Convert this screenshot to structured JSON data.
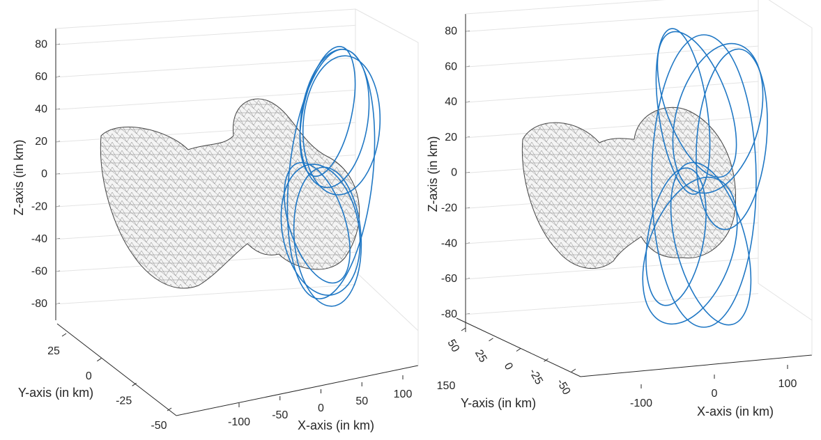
{
  "chart_data": [
    {
      "type": "line3d",
      "zlabel": "Z-axis (in km)",
      "ylabel": "Y-axis (in km)",
      "xlabel": "X-axis (in km)",
      "zlim": [
        -90,
        90
      ],
      "zticks": [
        -80,
        -60,
        -40,
        -20,
        0,
        20,
        40,
        60,
        80
      ],
      "yticks": [
        -50,
        -25,
        0,
        25
      ],
      "xticks": [
        -100,
        -50,
        0,
        50,
        100
      ],
      "grid": true
    },
    {
      "type": "line3d",
      "zlabel": "Z-axis (in km)",
      "ylabel": "Y-axis (in km)",
      "xlabel": "X-axis (in km)",
      "zlim": [
        -90,
        90
      ],
      "zticks": [
        -80,
        -60,
        -40,
        -20,
        0,
        20,
        40,
        60,
        80
      ],
      "yticks": [
        -50,
        -25,
        0,
        25,
        50
      ],
      "xticks": [
        -100,
        0,
        100
      ],
      "annotations": [
        "150"
      ],
      "grid": true
    }
  ]
}
